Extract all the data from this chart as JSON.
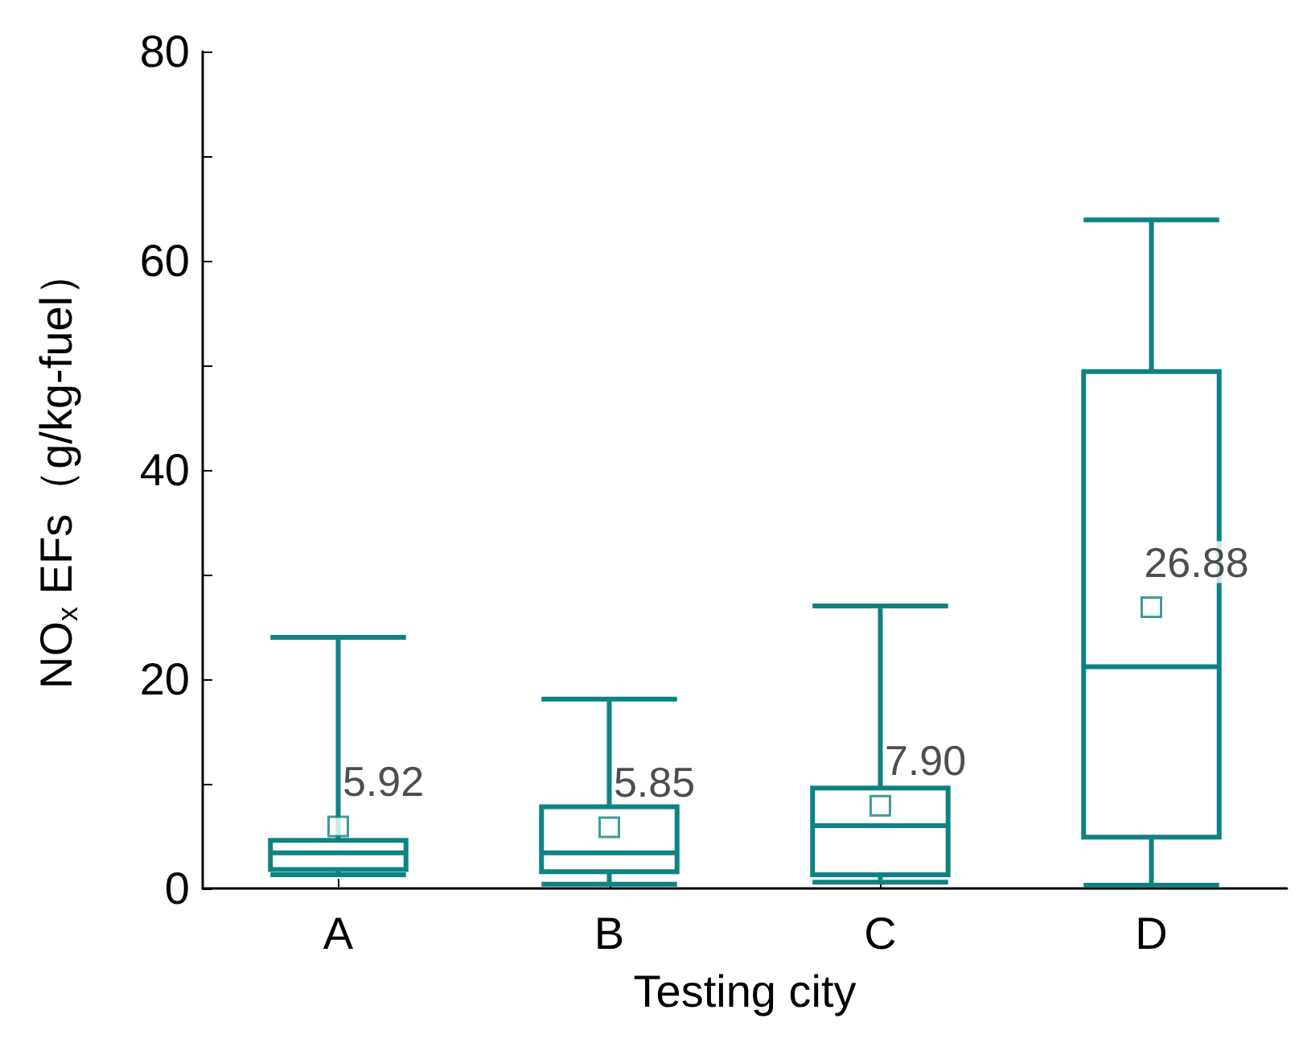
{
  "chart_data": {
    "type": "box",
    "xlabel": "Testing city",
    "ylabel": "NO$_{x}$ EFs（g/kg-fuel）",
    "categories": [
      "A",
      "B",
      "C",
      "D"
    ],
    "color": "#0f8282",
    "boxes": [
      {
        "low": 1.3,
        "q1": 1.8,
        "median": 3.4,
        "q3": 4.6,
        "high": 24,
        "mean": 5.92
      },
      {
        "low": 0.4,
        "q1": 1.6,
        "median": 3.4,
        "q3": 7.8,
        "high": 18.1,
        "mean": 5.85
      },
      {
        "low": 0.6,
        "q1": 1.3,
        "median": 6.0,
        "q3": 9.6,
        "high": 27,
        "mean": 7.9
      },
      {
        "low": 0.3,
        "q1": 4.9,
        "median": 21.2,
        "q3": 49.4,
        "high": 63.9,
        "mean": 26.88
      }
    ],
    "annotations": [
      "5.92",
      "5.85",
      "7.90",
      "26.88"
    ],
    "ylim": [
      0,
      80
    ],
    "yticks": [
      0,
      {
        "value": 10,
        "label": null
      },
      20,
      {
        "value": 30,
        "label": null
      },
      40,
      {
        "value": 50,
        "label": null
      },
      60,
      {
        "value": 70,
        "label": null
      },
      80
    ],
    "grid": false
  }
}
